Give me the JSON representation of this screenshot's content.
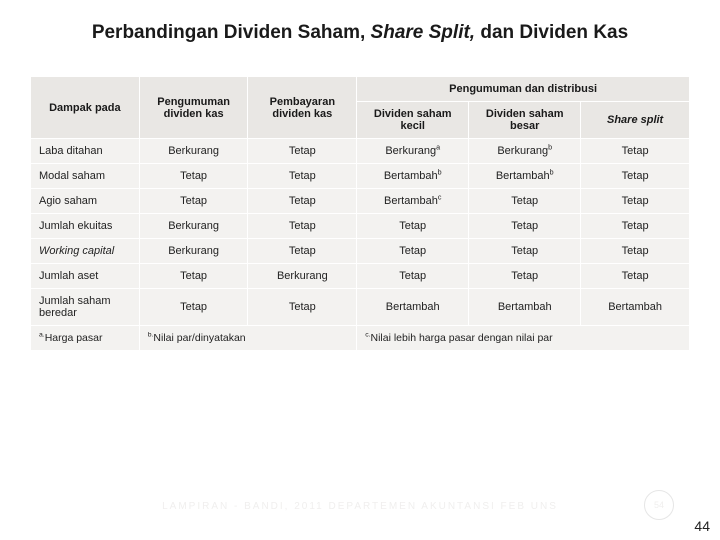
{
  "title_parts": {
    "p1": "Perbandingan Dividen Saham, ",
    "p2": "Share Split,",
    "p3": " dan Dividen Kas"
  },
  "table": {
    "header": {
      "c0": "Dampak pada",
      "c1": "Pengumuman dividen kas",
      "c2": "Pembayaran dividen kas",
      "group": "Pengumuman dan distribusi",
      "g1": "Dividen saham kecil",
      "g2": "Dividen saham besar",
      "g3_em": "Share split"
    },
    "rows": [
      {
        "rh": "Laba ditahan",
        "c1": "Berkurang",
        "c2": "Tetap",
        "c3": "Berkurang",
        "c3s": "a",
        "c4": "Berkurang",
        "c4s": "b",
        "c5": "Tetap"
      },
      {
        "rh": "Modal saham",
        "c1": "Tetap",
        "c2": "Tetap",
        "c3": "Bertambah",
        "c3s": "b",
        "c4": "Bertambah",
        "c4s": "b",
        "c5": "Tetap"
      },
      {
        "rh": "Agio saham",
        "c1": "Tetap",
        "c2": "Tetap",
        "c3": "Bertambah",
        "c3s": "c",
        "c4": "Tetap",
        "c5": "Tetap"
      },
      {
        "rh": "Jumlah ekuitas",
        "c1": "Berkurang",
        "c2": "Tetap",
        "c3": "Tetap",
        "c4": "Tetap",
        "c5": "Tetap"
      },
      {
        "rh": "Working capital",
        "rh_em": true,
        "c1": "Berkurang",
        "c2": "Tetap",
        "c3": "Tetap",
        "c4": "Tetap",
        "c5": "Tetap"
      },
      {
        "rh": "Jumlah aset",
        "c1": "Tetap",
        "c2": "Berkurang",
        "c3": "Tetap",
        "c4": "Tetap",
        "c5": "Tetap"
      },
      {
        "rh": "Jumlah saham beredar",
        "c1": "Tetap",
        "c2": "Tetap",
        "c3": "Bertambah",
        "c4": "Bertambah",
        "c5": "Bertambah"
      }
    ],
    "footnotes": {
      "a_sup": "a.",
      "a_text": "Harga pasar",
      "b_sup": "b.",
      "b_text": "Nilai par/dinyatakan",
      "c_sup": "c.",
      "c_text": "Nilai lebih harga pasar dengan nilai par"
    }
  },
  "footer": {
    "text": "LAMPIRAN   -  BANDI, 2011   DEPARTEMEN AKUNTANSI FEB UNS",
    "circle": "54",
    "pagenum": "44"
  },
  "colors": {
    "header_bg": "#e9e7e4",
    "body_bg": "#f3f2f0",
    "border": "#ffffff",
    "text": "#1a1a1a"
  }
}
